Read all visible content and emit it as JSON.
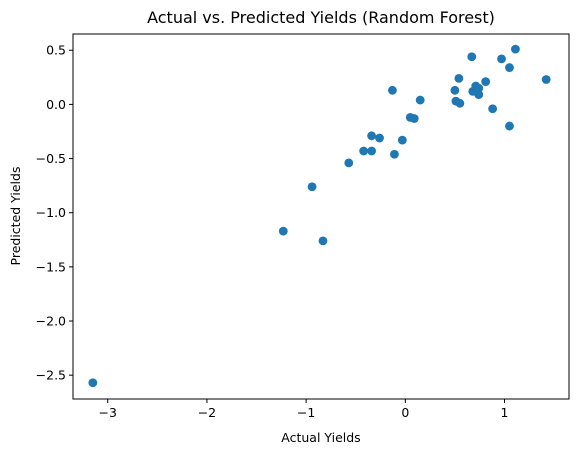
{
  "chart_data": {
    "type": "scatter",
    "title": "Actual vs. Predicted Yields (Random Forest)",
    "xlabel": "Actual Yields",
    "ylabel": "Predicted Yields",
    "xlim": [
      -3.35,
      1.65
    ],
    "ylim": [
      -2.72,
      0.65
    ],
    "xticks": [
      -3,
      -2,
      -1,
      0,
      1
    ],
    "xtick_labels": [
      "−3",
      "−2",
      "−1",
      "0",
      "1"
    ],
    "yticks": [
      -2.5,
      -2.0,
      -1.5,
      -1.0,
      -0.5,
      0.0,
      0.5
    ],
    "ytick_labels": [
      "−2.5",
      "−2.0",
      "−1.5",
      "−1.0",
      "−0.5",
      "0.0",
      "0.5"
    ],
    "grid": false,
    "color": "#1f77b4",
    "points": [
      {
        "x": -3.15,
        "y": -2.57
      },
      {
        "x": -1.23,
        "y": -1.17
      },
      {
        "x": -0.83,
        "y": -1.26
      },
      {
        "x": -0.94,
        "y": -0.76
      },
      {
        "x": -0.57,
        "y": -0.54
      },
      {
        "x": -0.42,
        "y": -0.43
      },
      {
        "x": -0.34,
        "y": -0.43
      },
      {
        "x": -0.34,
        "y": -0.29
      },
      {
        "x": -0.26,
        "y": -0.31
      },
      {
        "x": -0.11,
        "y": -0.46
      },
      {
        "x": -0.03,
        "y": -0.33
      },
      {
        "x": -0.13,
        "y": 0.13
      },
      {
        "x": 0.05,
        "y": -0.12
      },
      {
        "x": 0.09,
        "y": -0.13
      },
      {
        "x": 0.15,
        "y": 0.04
      },
      {
        "x": 0.5,
        "y": 0.13
      },
      {
        "x": 0.51,
        "y": 0.03
      },
      {
        "x": 0.55,
        "y": 0.01
      },
      {
        "x": 0.54,
        "y": 0.24
      },
      {
        "x": 0.67,
        "y": 0.44
      },
      {
        "x": 0.68,
        "y": 0.12
      },
      {
        "x": 0.71,
        "y": 0.17
      },
      {
        "x": 0.74,
        "y": 0.15
      },
      {
        "x": 0.74,
        "y": 0.09
      },
      {
        "x": 0.81,
        "y": 0.21
      },
      {
        "x": 0.88,
        "y": -0.04
      },
      {
        "x": 0.97,
        "y": 0.42
      },
      {
        "x": 1.05,
        "y": 0.34
      },
      {
        "x": 1.05,
        "y": -0.2
      },
      {
        "x": 1.11,
        "y": 0.51
      },
      {
        "x": 1.42,
        "y": 0.23
      }
    ]
  }
}
